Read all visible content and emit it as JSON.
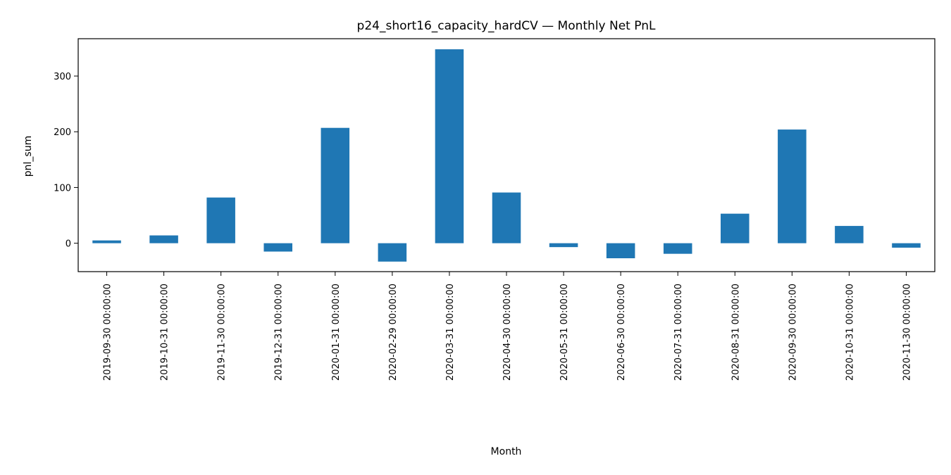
{
  "chart_data": {
    "type": "bar",
    "title": "p24_short16_capacity_hardCV — Monthly Net PnL",
    "xlabel": "Month",
    "ylabel": "pnl_sum",
    "categories": [
      "2019-09-30 00:00:00",
      "2019-10-31 00:00:00",
      "2019-11-30 00:00:00",
      "2019-12-31 00:00:00",
      "2020-01-31 00:00:00",
      "2020-02-29 00:00:00",
      "2020-03-31 00:00:00",
      "2020-04-30 00:00:00",
      "2020-05-31 00:00:00",
      "2020-06-30 00:00:00",
      "2020-07-31 00:00:00",
      "2020-08-31 00:00:00",
      "2020-09-30 00:00:00",
      "2020-10-31 00:00:00",
      "2020-11-30 00:00:00"
    ],
    "values": [
      5,
      14,
      82,
      -15,
      207,
      -33,
      348,
      91,
      -7,
      -27,
      -19,
      53,
      204,
      31,
      -8
    ],
    "ylim": [
      -51,
      367
    ],
    "yticks": [
      0,
      100,
      200,
      300
    ],
    "grid": false,
    "bar_color": "#1f77b4"
  }
}
